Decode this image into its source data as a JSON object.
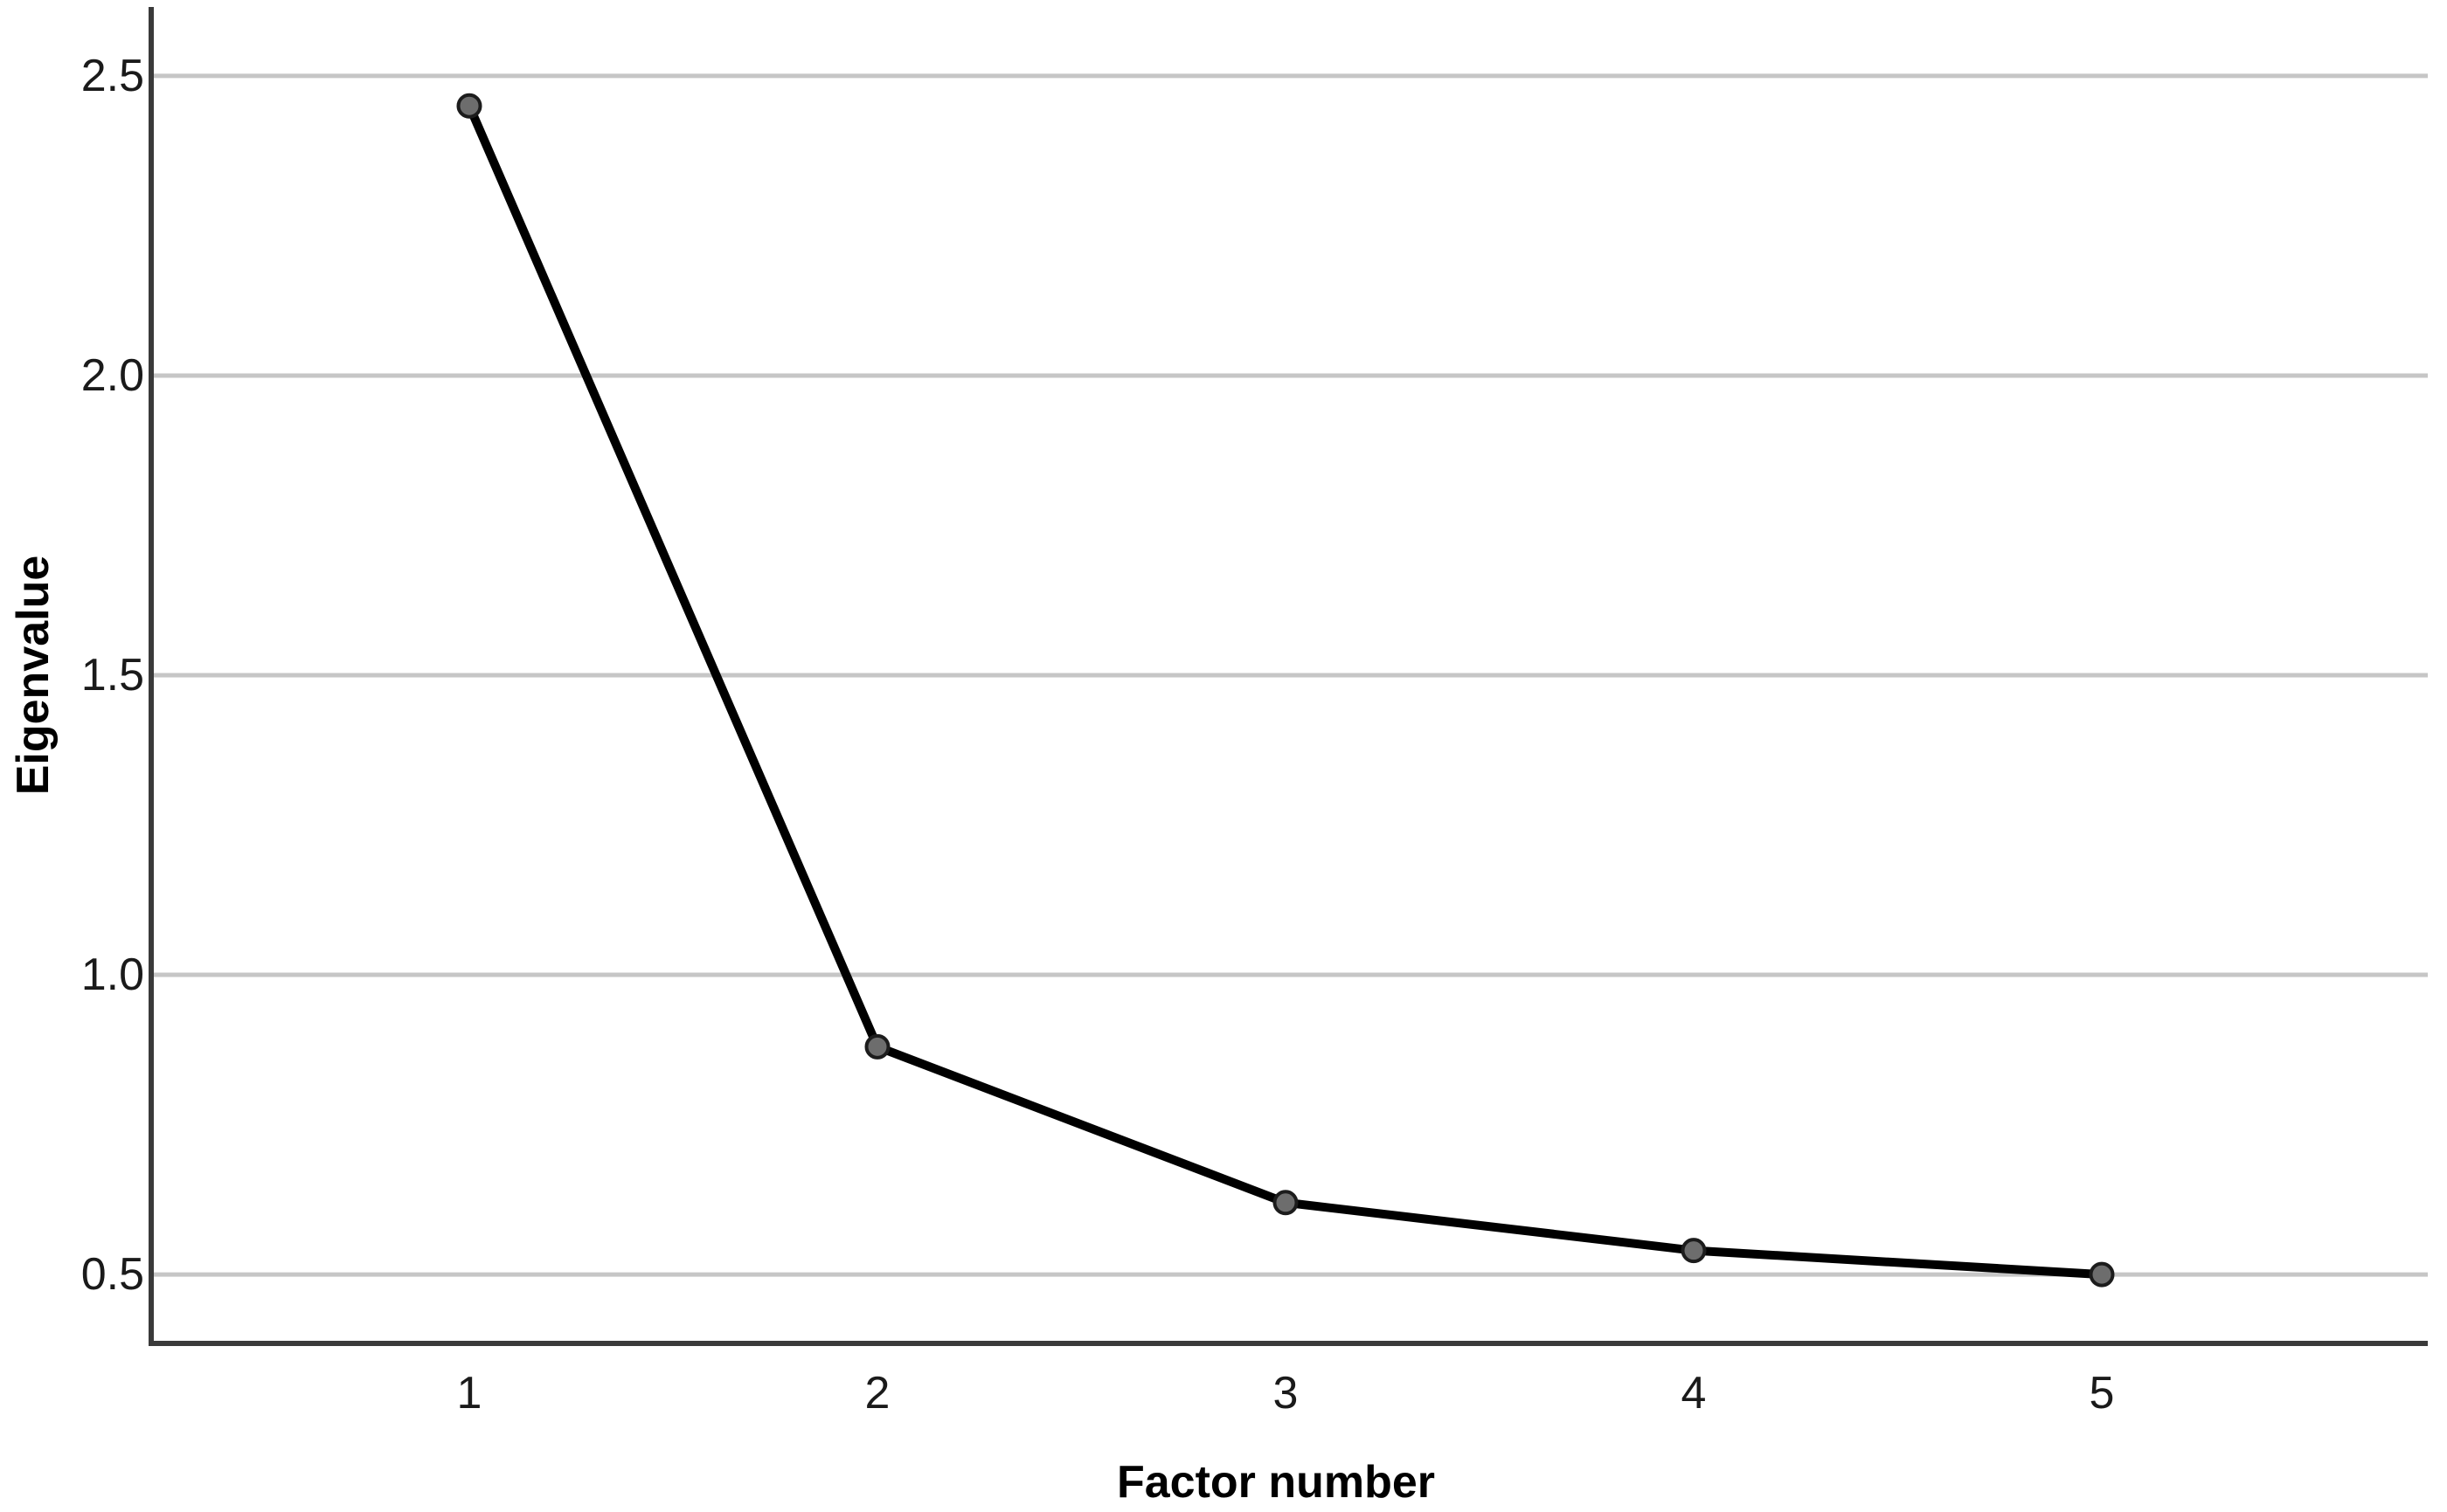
{
  "chart_data": {
    "type": "line",
    "xlabel": "Factor number",
    "ylabel": "Eigenvalue",
    "x": [
      1,
      2,
      3,
      4,
      5
    ],
    "values": [
      2.45,
      0.88,
      0.62,
      0.54,
      0.5
    ],
    "xtick_labels": [
      "1",
      "2",
      "3",
      "4",
      "5"
    ],
    "ytick_values": [
      0.5,
      1.0,
      1.5,
      2.0,
      2.5
    ],
    "ytick_labels": [
      "0.5",
      "1.0",
      "1.5",
      "2.0",
      "2.5"
    ],
    "ylim": [
      0.385,
      2.615
    ],
    "grid": "horizontal-only",
    "legend_position": "none",
    "colors": {
      "line": "#000000",
      "marker_fill": "#6d6d6d",
      "marker_edge": "#1c1c1c",
      "gridline": "#c6c6c6",
      "axis": "#3a3a3a",
      "label_text": "#1a1a1a",
      "title_text": "#000000",
      "background": "#ffffff"
    }
  }
}
